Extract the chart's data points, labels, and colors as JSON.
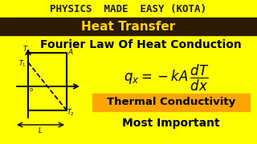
{
  "bg_color": "#FFFF00",
  "header_bg": "#2C1A00",
  "header_text": "Heat Transfer",
  "header_text_color": "#FFD700",
  "title_top": "PHYSICS  MADE  EASY (KOTA)",
  "title_top_color": "#1a1a1a",
  "subtitle": "Fourier Law Of Heat Conduction",
  "subtitle_color": "#000000",
  "formula_color": "#000000",
  "box1_bg": "#FFA500",
  "box1_text": "Thermal Conductivity",
  "box1_text_color": "#000000",
  "box2_text": "Most Important",
  "box2_text_color": "#000000"
}
